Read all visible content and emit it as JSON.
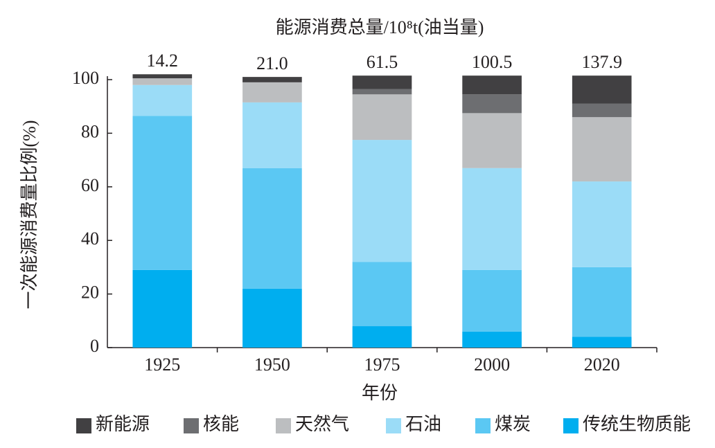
{
  "chart_data": {
    "type": "bar",
    "stacked": true,
    "title": "能源消费总量/10⁸t(油当量)",
    "x_label": "年份",
    "y_label": "一次能源消费量比例(%)",
    "categories": [
      "1925",
      "1950",
      "1975",
      "2000",
      "2020"
    ],
    "totals": {
      "values": [
        14.2,
        21.0,
        61.5,
        100.5,
        137.9
      ],
      "value_labels": [
        "14.2",
        "21.0",
        "61.5",
        "100.5",
        "137.9"
      ]
    },
    "series": [
      {
        "name": "传统生物质能",
        "color": "#00aeef",
        "values": [
          29,
          22,
          8,
          6,
          4
        ]
      },
      {
        "name": "煤炭",
        "color": "#5bc8f3",
        "values": [
          57.5,
          45,
          24,
          23,
          26
        ]
      },
      {
        "name": "石油",
        "color": "#9bdcf7",
        "values": [
          11.5,
          24.5,
          45.5,
          38,
          32
        ]
      },
      {
        "name": "天然气",
        "color": "#bcbec0",
        "values": [
          2.5,
          7.5,
          17,
          20.5,
          24
        ]
      },
      {
        "name": "核能",
        "color": "#6d6e71",
        "values": [
          0,
          0,
          2,
          7,
          5
        ]
      },
      {
        "name": "新能源",
        "color": "#414042",
        "values": [
          1.5,
          2,
          5,
          7,
          10.5
        ]
      }
    ],
    "ylim": [
      0,
      100
    ],
    "yticks": [
      0,
      20,
      40,
      60,
      80,
      100
    ],
    "legend": "bottom"
  }
}
